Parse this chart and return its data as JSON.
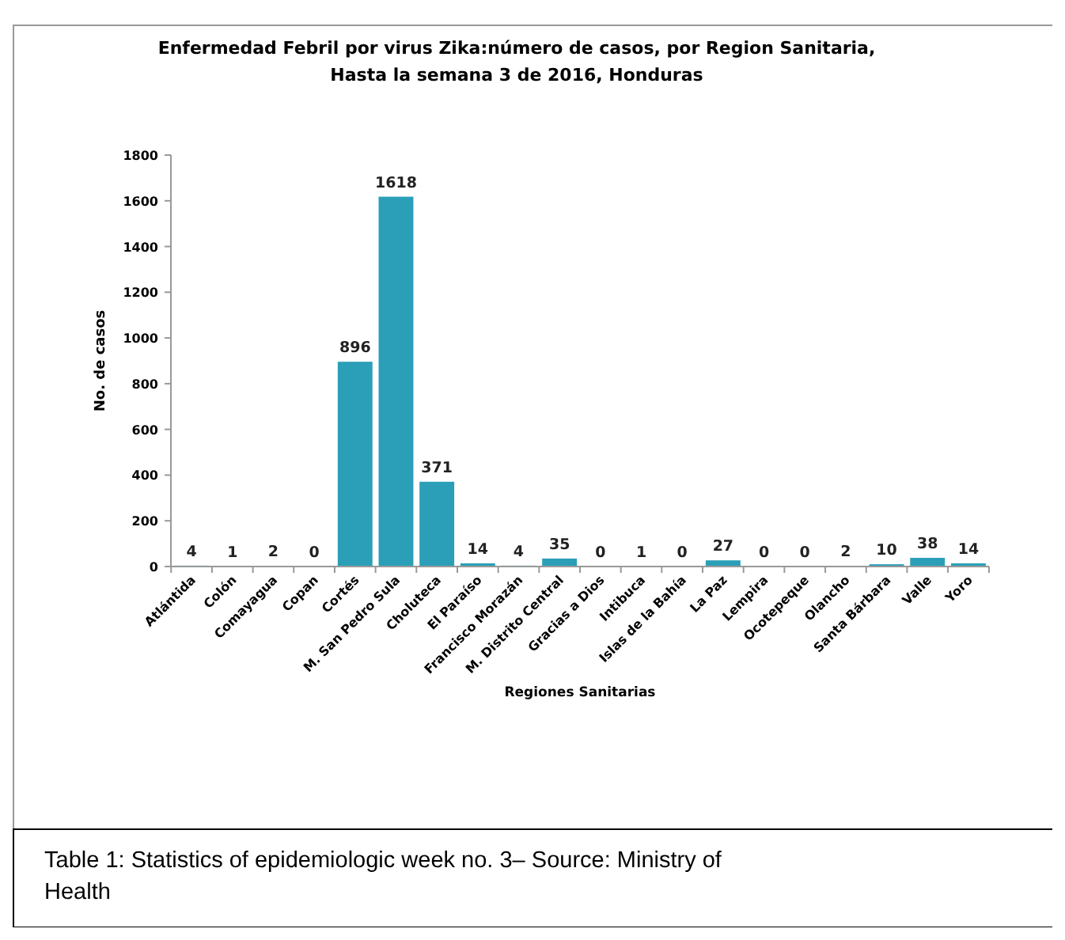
{
  "chart_data": {
    "type": "bar",
    "title": "Enfermedad Febril por virus Zika:número de casos, por Region Sanitaria,\nHasta la semana 3 de 2016, Honduras",
    "xlabel": "Regiones Sanitarias",
    "ylabel": "No. de casos",
    "categories": [
      "Atlántida",
      "Colón",
      "Comayagua",
      "Copan",
      "Cortés",
      "M. San Pedro Sula",
      "Choluteca",
      "El Paraíso",
      "Francisco Morazán",
      "M. Distrito Central",
      "Gracias a Dios",
      "Intibuca",
      "Islas de la Bahía",
      "La Paz",
      "Lempira",
      "Ocotepeque",
      "Olancho",
      "Santa Bárbara",
      "Valle",
      "Yoro"
    ],
    "values": [
      4,
      1,
      2,
      0,
      896,
      1618,
      371,
      14,
      4,
      35,
      0,
      1,
      0,
      27,
      0,
      0,
      2,
      10,
      38,
      14
    ],
    "color": "#2b9fb8",
    "ylim": [
      0,
      1800
    ],
    "yticks": [
      0,
      200,
      400,
      600,
      800,
      1000,
      1200,
      1400,
      1600,
      1800
    ],
    "grid": false,
    "data_labels": true,
    "annotations": [
      "Table 1: Statistics of epidemiologic week no. 3– Source: Ministry of Health"
    ]
  }
}
